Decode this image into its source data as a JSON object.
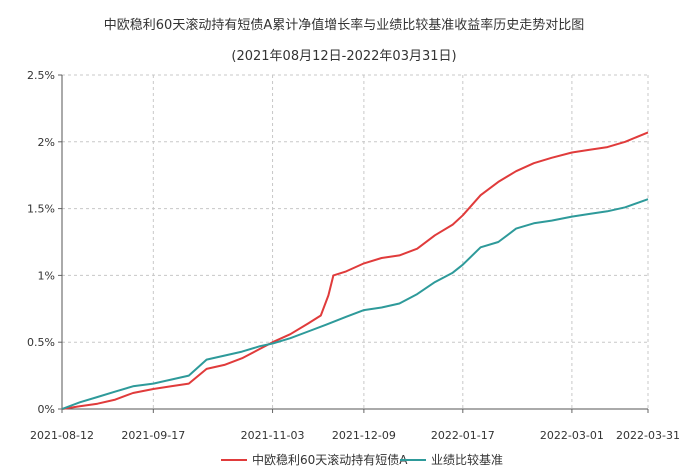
{
  "chart_data": {
    "type": "line",
    "title": "中欧稳利60天滚动持有短债A累计净值增长率与业绩比较基准收益率历史走势对比图",
    "subtitle": "(2021年08月12日-2022年03月31日)",
    "x_ticks": [
      "2021-08-12",
      "2021-09-17",
      "2021-11-03",
      "2021-12-09",
      "2022-01-17",
      "2022-03-01",
      "2022-03-31"
    ],
    "y_ticks": [
      "0%",
      "0.5%",
      "1%",
      "1.5%",
      "2%",
      "2.5%"
    ],
    "ylim": [
      0,
      2.5
    ],
    "grid": true,
    "legend_position": "bottom",
    "colors": {
      "fund": "#e03b3b",
      "benchmark": "#2e9a9a",
      "grid": "#c8c8c8"
    },
    "series": [
      {
        "name": "中欧稳利60天滚动持有短债A",
        "points": [
          [
            "2021-08-12",
            0.0
          ],
          [
            "2021-08-19",
            0.02
          ],
          [
            "2021-08-26",
            0.04
          ],
          [
            "2021-09-02",
            0.07
          ],
          [
            "2021-09-09",
            0.12
          ],
          [
            "2021-09-17",
            0.15
          ],
          [
            "2021-09-24",
            0.17
          ],
          [
            "2021-10-01",
            0.19
          ],
          [
            "2021-10-08",
            0.3
          ],
          [
            "2021-10-15",
            0.33
          ],
          [
            "2021-10-22",
            0.38
          ],
          [
            "2021-10-29",
            0.45
          ],
          [
            "2021-11-03",
            0.5
          ],
          [
            "2021-11-10",
            0.56
          ],
          [
            "2021-11-17",
            0.64
          ],
          [
            "2021-11-22",
            0.7
          ],
          [
            "2021-11-25",
            0.85
          ],
          [
            "2021-11-27",
            1.0
          ],
          [
            "2021-12-02",
            1.03
          ],
          [
            "2021-12-09",
            1.09
          ],
          [
            "2021-12-16",
            1.13
          ],
          [
            "2021-12-23",
            1.15
          ],
          [
            "2021-12-30",
            1.2
          ],
          [
            "2022-01-06",
            1.3
          ],
          [
            "2022-01-13",
            1.38
          ],
          [
            "2022-01-17",
            1.45
          ],
          [
            "2022-01-24",
            1.6
          ],
          [
            "2022-01-31",
            1.7
          ],
          [
            "2022-02-07",
            1.78
          ],
          [
            "2022-02-14",
            1.84
          ],
          [
            "2022-02-21",
            1.88
          ],
          [
            "2022-03-01",
            1.92
          ],
          [
            "2022-03-08",
            1.94
          ],
          [
            "2022-03-15",
            1.96
          ],
          [
            "2022-03-22",
            2.0
          ],
          [
            "2022-03-31",
            2.07
          ]
        ]
      },
      {
        "name": "业绩比较基准",
        "points": [
          [
            "2021-08-12",
            0.0
          ],
          [
            "2021-08-19",
            0.05
          ],
          [
            "2021-08-26",
            0.09
          ],
          [
            "2021-09-02",
            0.13
          ],
          [
            "2021-09-09",
            0.17
          ],
          [
            "2021-09-17",
            0.19
          ],
          [
            "2021-09-24",
            0.22
          ],
          [
            "2021-10-01",
            0.25
          ],
          [
            "2021-10-08",
            0.37
          ],
          [
            "2021-10-15",
            0.4
          ],
          [
            "2021-10-22",
            0.43
          ],
          [
            "2021-10-29",
            0.47
          ],
          [
            "2021-11-03",
            0.49
          ],
          [
            "2021-11-10",
            0.53
          ],
          [
            "2021-11-17",
            0.58
          ],
          [
            "2021-11-24",
            0.63
          ],
          [
            "2021-12-02",
            0.69
          ],
          [
            "2021-12-09",
            0.74
          ],
          [
            "2021-12-16",
            0.76
          ],
          [
            "2021-12-23",
            0.79
          ],
          [
            "2021-12-30",
            0.86
          ],
          [
            "2022-01-06",
            0.95
          ],
          [
            "2022-01-13",
            1.02
          ],
          [
            "2022-01-17",
            1.08
          ],
          [
            "2022-01-24",
            1.21
          ],
          [
            "2022-01-31",
            1.25
          ],
          [
            "2022-02-07",
            1.35
          ],
          [
            "2022-02-14",
            1.39
          ],
          [
            "2022-02-21",
            1.41
          ],
          [
            "2022-03-01",
            1.44
          ],
          [
            "2022-03-08",
            1.46
          ],
          [
            "2022-03-15",
            1.48
          ],
          [
            "2022-03-22",
            1.51
          ],
          [
            "2022-03-31",
            1.57
          ]
        ]
      }
    ]
  }
}
